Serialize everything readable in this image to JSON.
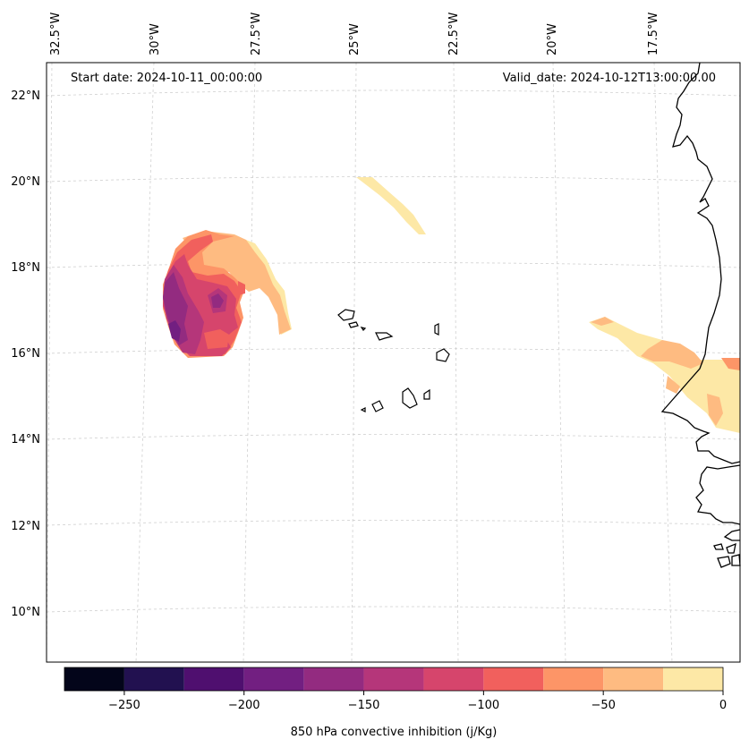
{
  "header": {
    "start_date": "Start date: 2024-10-11_00:00:00",
    "valid_date": "Valid_date: 2024-10-12T13:00:00.00"
  },
  "lon_labels": [
    "32.5°W",
    "30°W",
    "27.5°W",
    "25°W",
    "22.5°W",
    "20°W",
    "17.5°W"
  ],
  "lat_labels": [
    "22°N",
    "20°N",
    "18°N",
    "16°N",
    "14°N",
    "12°N",
    "10°N"
  ],
  "colorbar": {
    "label": "850 hPa convective inhibition (j/Kg)",
    "tick_labels": [
      "−250",
      "−200",
      "−150",
      "−100",
      "−50",
      "0"
    ],
    "levels": [
      -275,
      -250,
      -225,
      -200,
      -175,
      -150,
      -125,
      -100,
      -75,
      -50,
      -25,
      0
    ],
    "colors": [
      "#03051a",
      "#221150",
      "#4f0f6f",
      "#721f81",
      "#932b80",
      "#b5367a",
      "#d6456c",
      "#f1605d",
      "#fd9567",
      "#febb81",
      "#fde8a6"
    ]
  },
  "colors": {
    "coastline": "#000000",
    "gridline": "#d0d0d0"
  }
}
